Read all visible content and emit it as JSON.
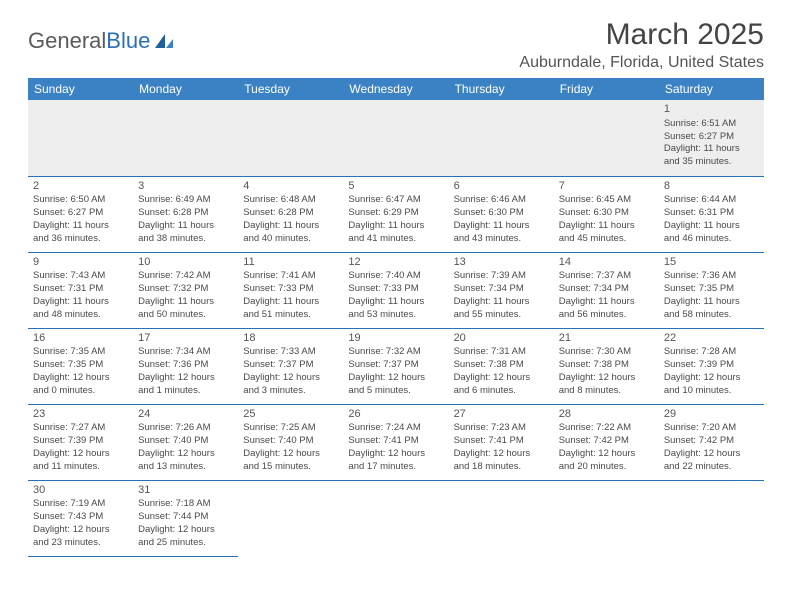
{
  "logo": {
    "text1": "General",
    "text2": "Blue"
  },
  "title": "March 2025",
  "location": "Auburndale, Florida, United States",
  "colors": {
    "header_bg": "#3b82c4",
    "header_text": "#ffffff",
    "border": "#2a70b8",
    "empty_bg": "#eeeeee"
  },
  "weekdayLabels": [
    "Sunday",
    "Monday",
    "Tuesday",
    "Wednesday",
    "Thursday",
    "Friday",
    "Saturday"
  ],
  "days": {
    "1": {
      "sunrise": "6:51 AM",
      "sunset": "6:27 PM",
      "dl_h": 11,
      "dl_m": 35
    },
    "2": {
      "sunrise": "6:50 AM",
      "sunset": "6:27 PM",
      "dl_h": 11,
      "dl_m": 36
    },
    "3": {
      "sunrise": "6:49 AM",
      "sunset": "6:28 PM",
      "dl_h": 11,
      "dl_m": 38
    },
    "4": {
      "sunrise": "6:48 AM",
      "sunset": "6:28 PM",
      "dl_h": 11,
      "dl_m": 40
    },
    "5": {
      "sunrise": "6:47 AM",
      "sunset": "6:29 PM",
      "dl_h": 11,
      "dl_m": 41
    },
    "6": {
      "sunrise": "6:46 AM",
      "sunset": "6:30 PM",
      "dl_h": 11,
      "dl_m": 43
    },
    "7": {
      "sunrise": "6:45 AM",
      "sunset": "6:30 PM",
      "dl_h": 11,
      "dl_m": 45
    },
    "8": {
      "sunrise": "6:44 AM",
      "sunset": "6:31 PM",
      "dl_h": 11,
      "dl_m": 46
    },
    "9": {
      "sunrise": "7:43 AM",
      "sunset": "7:31 PM",
      "dl_h": 11,
      "dl_m": 48
    },
    "10": {
      "sunrise": "7:42 AM",
      "sunset": "7:32 PM",
      "dl_h": 11,
      "dl_m": 50
    },
    "11": {
      "sunrise": "7:41 AM",
      "sunset": "7:33 PM",
      "dl_h": 11,
      "dl_m": 51
    },
    "12": {
      "sunrise": "7:40 AM",
      "sunset": "7:33 PM",
      "dl_h": 11,
      "dl_m": 53
    },
    "13": {
      "sunrise": "7:39 AM",
      "sunset": "7:34 PM",
      "dl_h": 11,
      "dl_m": 55
    },
    "14": {
      "sunrise": "7:37 AM",
      "sunset": "7:34 PM",
      "dl_h": 11,
      "dl_m": 56
    },
    "15": {
      "sunrise": "7:36 AM",
      "sunset": "7:35 PM",
      "dl_h": 11,
      "dl_m": 58
    },
    "16": {
      "sunrise": "7:35 AM",
      "sunset": "7:35 PM",
      "dl_h": 12,
      "dl_m": 0
    },
    "17": {
      "sunrise": "7:34 AM",
      "sunset": "7:36 PM",
      "dl_h": 12,
      "dl_m": 1
    },
    "18": {
      "sunrise": "7:33 AM",
      "sunset": "7:37 PM",
      "dl_h": 12,
      "dl_m": 3
    },
    "19": {
      "sunrise": "7:32 AM",
      "sunset": "7:37 PM",
      "dl_h": 12,
      "dl_m": 5
    },
    "20": {
      "sunrise": "7:31 AM",
      "sunset": "7:38 PM",
      "dl_h": 12,
      "dl_m": 6
    },
    "21": {
      "sunrise": "7:30 AM",
      "sunset": "7:38 PM",
      "dl_h": 12,
      "dl_m": 8
    },
    "22": {
      "sunrise": "7:28 AM",
      "sunset": "7:39 PM",
      "dl_h": 12,
      "dl_m": 10
    },
    "23": {
      "sunrise": "7:27 AM",
      "sunset": "7:39 PM",
      "dl_h": 12,
      "dl_m": 11
    },
    "24": {
      "sunrise": "7:26 AM",
      "sunset": "7:40 PM",
      "dl_h": 12,
      "dl_m": 13
    },
    "25": {
      "sunrise": "7:25 AM",
      "sunset": "7:40 PM",
      "dl_h": 12,
      "dl_m": 15
    },
    "26": {
      "sunrise": "7:24 AM",
      "sunset": "7:41 PM",
      "dl_h": 12,
      "dl_m": 17
    },
    "27": {
      "sunrise": "7:23 AM",
      "sunset": "7:41 PM",
      "dl_h": 12,
      "dl_m": 18
    },
    "28": {
      "sunrise": "7:22 AM",
      "sunset": "7:42 PM",
      "dl_h": 12,
      "dl_m": 20
    },
    "29": {
      "sunrise": "7:20 AM",
      "sunset": "7:42 PM",
      "dl_h": 12,
      "dl_m": 22
    },
    "30": {
      "sunrise": "7:19 AM",
      "sunset": "7:43 PM",
      "dl_h": 12,
      "dl_m": 23
    },
    "31": {
      "sunrise": "7:18 AM",
      "sunset": "7:44 PM",
      "dl_h": 12,
      "dl_m": 25
    }
  },
  "labels": {
    "sunrise": "Sunrise: ",
    "sunset": "Sunset: ",
    "daylight": "Daylight: ",
    "hours": " hours",
    "and": "and ",
    "minutes": " minutes."
  },
  "grid": [
    [
      null,
      null,
      null,
      null,
      null,
      null,
      "1"
    ],
    [
      "2",
      "3",
      "4",
      "5",
      "6",
      "7",
      "8"
    ],
    [
      "9",
      "10",
      "11",
      "12",
      "13",
      "14",
      "15"
    ],
    [
      "16",
      "17",
      "18",
      "19",
      "20",
      "21",
      "22"
    ],
    [
      "23",
      "24",
      "25",
      "26",
      "27",
      "28",
      "29"
    ],
    [
      "30",
      "31",
      null,
      null,
      null,
      null,
      null
    ]
  ]
}
